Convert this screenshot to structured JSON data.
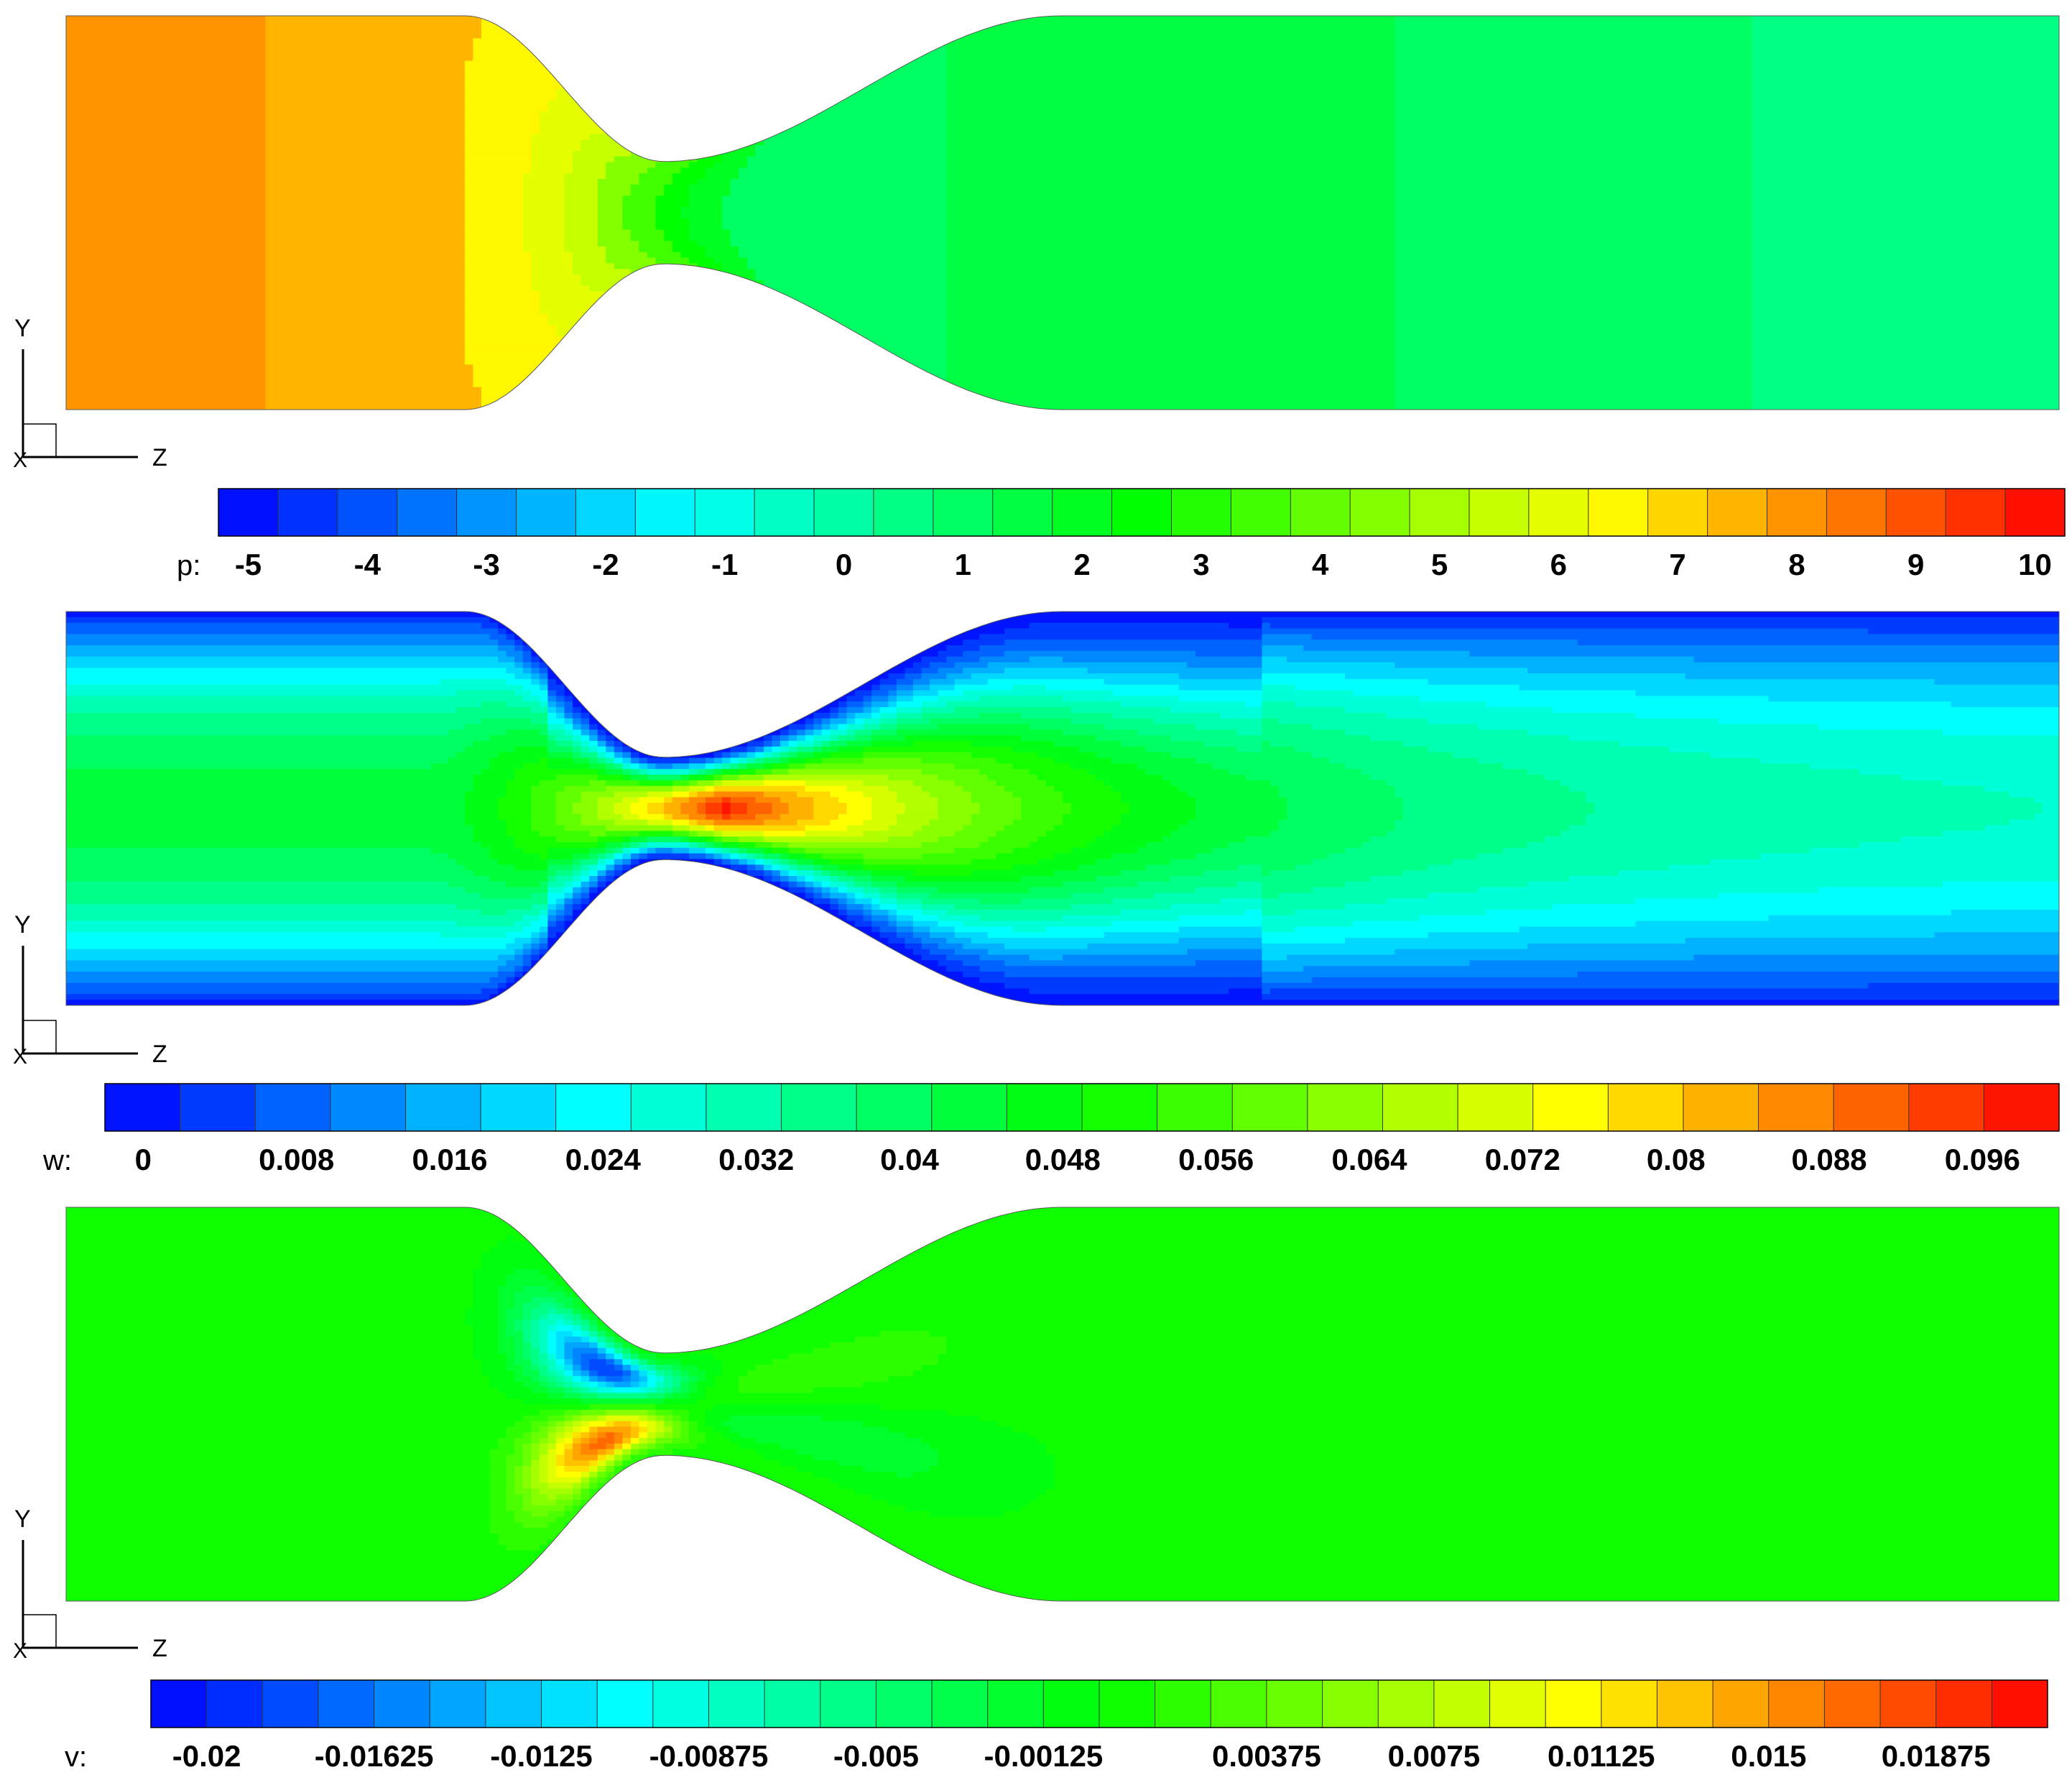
{
  "chart_data": [
    {
      "type": "contour",
      "title": "p",
      "variable_label": "p:",
      "axes": {
        "vertical": "Y",
        "horizontal": "Z",
        "normal": "X"
      },
      "legend": {
        "min": -5.25,
        "max": 10.25,
        "levels": 31,
        "tick_values": [
          -5,
          -4,
          -3,
          -2,
          -1,
          0,
          1,
          2,
          3,
          4,
          5,
          6,
          7,
          8,
          9,
          10
        ],
        "tick_labels": [
          "-5",
          "-4",
          "-3",
          "-2",
          "-1",
          "0",
          "1",
          "2",
          "3",
          "4",
          "5",
          "6",
          "7",
          "8",
          "9",
          "10"
        ]
      },
      "regions": [
        {
          "z_start": 0.0,
          "z_end": 0.099,
          "value": 8.1
        },
        {
          "z_start": 0.099,
          "z_end": 0.2,
          "value": 7.6
        },
        {
          "z_start": 0.2,
          "z_end": 0.24,
          "value": 6.6
        },
        {
          "z_start": 0.24,
          "z_end": 0.26,
          "value": 6.0
        },
        {
          "z_start": 0.26,
          "z_end": 0.275,
          "value": 5.4
        },
        {
          "z_start": 0.275,
          "z_end": 0.29,
          "value": 4.6
        },
        {
          "z_start": 0.29,
          "z_end": 0.305,
          "value": 3.6
        },
        {
          "z_start": 0.305,
          "z_end": 0.32,
          "value": 2.6
        },
        {
          "z_start": 0.32,
          "z_end": 0.34,
          "value": 1.9
        },
        {
          "z_start": 0.34,
          "z_end": 0.44,
          "value": 0.9
        },
        {
          "z_start": 0.44,
          "z_end": 0.665,
          "value": 1.5
        },
        {
          "z_start": 0.665,
          "z_end": 0.845,
          "value": 1.1
        },
        {
          "z_start": 0.845,
          "z_end": 1.0,
          "value": 0.6
        }
      ]
    },
    {
      "type": "contour",
      "title": "w",
      "variable_label": "w:",
      "axes": {
        "vertical": "Y",
        "horizontal": "Z",
        "normal": "X"
      },
      "legend": {
        "min": -0.002,
        "max": 0.1,
        "levels": 26,
        "tick_values": [
          0,
          0.008,
          0.016,
          0.024,
          0.032,
          0.04,
          0.048,
          0.056,
          0.064,
          0.072,
          0.08,
          0.088,
          0.096
        ],
        "tick_labels": [
          "0",
          "0.008",
          "0.016",
          "0.024",
          "0.032",
          "0.04",
          "0.048",
          "0.056",
          "0.064",
          "0.072",
          "0.08",
          "0.088",
          "0.096"
        ]
      },
      "core_maximum": {
        "z": 0.33,
        "value": 0.099
      },
      "outlet_centerline_value": 0.03
    },
    {
      "type": "contour",
      "title": "v",
      "variable_label": "v:",
      "axes": {
        "vertical": "Y",
        "horizontal": "Z",
        "normal": "X"
      },
      "legend": {
        "min": -0.02125,
        "max": 0.02125,
        "levels": 34,
        "tick_values": [
          -0.02,
          -0.01625,
          -0.0125,
          -0.00875,
          -0.005,
          -0.00125,
          0.00375,
          0.0075,
          0.01125,
          0.015,
          0.01875
        ],
        "tick_labels": [
          "-0.02",
          "-0.01625",
          "-0.0125",
          "-0.00875",
          "-0.005",
          "-0.00125",
          "0.00375",
          "0.0075",
          "0.01125",
          "0.015",
          "0.01875"
        ]
      },
      "background_value": 0.0004,
      "extrema": [
        {
          "name": "upper-minimum",
          "z": 0.27,
          "y": 0.72,
          "value": -0.019
        },
        {
          "name": "lower-maximum",
          "z": 0.27,
          "y": 0.28,
          "value": 0.0175
        },
        {
          "name": "upper-downstream-positive",
          "z": 0.37,
          "y": 0.67,
          "value": 0.002
        },
        {
          "name": "lower-downstream-negative",
          "z": 0.37,
          "y": 0.33,
          "value": -0.0025
        }
      ]
    }
  ]
}
